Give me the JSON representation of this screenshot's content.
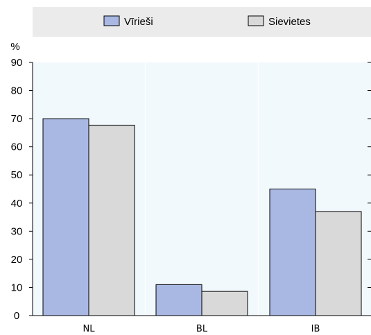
{
  "chart_data": {
    "type": "bar",
    "title": "",
    "xlabel": "",
    "ylabel": "%",
    "ylim": [
      0,
      90
    ],
    "yticks": [
      0,
      10,
      20,
      30,
      40,
      50,
      60,
      70,
      80,
      90
    ],
    "categories": [
      "NL",
      "BL",
      "IB"
    ],
    "series": [
      {
        "name": "Vīrieši",
        "values": [
          70,
          11,
          45
        ],
        "color": "#a9b8e3"
      },
      {
        "name": "Sievietes",
        "values": [
          67.7,
          8.6,
          37
        ],
        "color": "#d9d9d9"
      }
    ],
    "legend_position": "top",
    "grid": false
  },
  "colors": {
    "legend_background": "#ebebeb",
    "plot_background": "#f2f9fd",
    "gridline": "#ffffff",
    "axis": "#000000"
  }
}
